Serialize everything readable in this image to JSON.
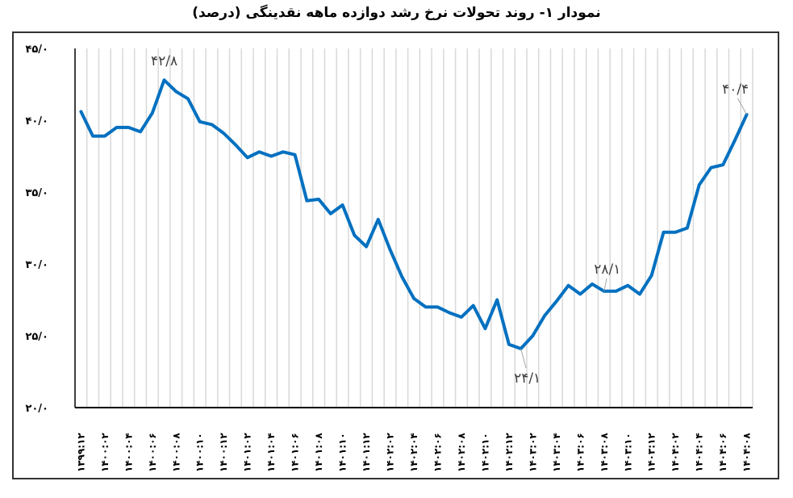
{
  "title": "نمودار ۱- روند تحولات نرخ رشد دوازده ماهه نقدینگی (درصد)",
  "colors": {
    "line": "#0070c0",
    "grid": "#d9d9d9",
    "axis": "#000000",
    "label": "#404040",
    "frame": "#333333"
  },
  "chart_data": {
    "type": "line",
    "title": "نمودار ۱- روند تحولات نرخ رشد دوازده ماهه نقدینگی (درصد)",
    "xlabel": "",
    "ylabel": "",
    "ylim": [
      20,
      45
    ],
    "yticks": [
      20,
      25,
      30,
      35,
      40,
      45
    ],
    "ytick_labels": [
      "۲۰/۰",
      "۲۵/۰",
      "۳۰/۰",
      "۳۵/۰",
      "۴۰/۰",
      "۴۵/۰"
    ],
    "grid": "vertical category gridlines",
    "legend": "none",
    "x": [
      "1399:12",
      "1400:01",
      "1400:02",
      "1400:03",
      "1400:04",
      "1400:05",
      "1400:06",
      "1400:07",
      "1400:08",
      "1400:09",
      "1400:10",
      "1400:11",
      "1400:12",
      "1401:01",
      "1401:02",
      "1401:03",
      "1401:04",
      "1401:05",
      "1401:06",
      "1401:07",
      "1401:08",
      "1401:09",
      "1401:10",
      "1401:11",
      "1401:12",
      "1402:01",
      "1402:02",
      "1402:03",
      "1402:04",
      "1402:05",
      "1402:06",
      "1402:07",
      "1402:08",
      "1402:09",
      "1402:10",
      "1402:11",
      "1402:12",
      "1403:01",
      "1403:02",
      "1403:03",
      "1403:04",
      "1403:05",
      "1403:06",
      "1403:07",
      "1403:08",
      "1403:09",
      "1403:10",
      "1403:11",
      "1403:12",
      "1404:01",
      "1404:02",
      "1404:03",
      "1404:04",
      "1404:05",
      "1404:06",
      "1404:07",
      "1404:08"
    ],
    "x_tick_labels": [
      "۱۳۹۹:۱۲",
      "۱۴۰۰:۰۲",
      "۱۴۰۰:۰۴",
      "۱۴۰۰:۰۶",
      "۱۴۰۰:۰۸",
      "۱۴۰۰:۱۰",
      "۱۴۰۰:۱۲",
      "۱۴۰۱:۰۲",
      "۱۴۰۱:۰۴",
      "۱۴۰۱:۰۶",
      "۱۴۰۱:۰۸",
      "۱۴۰۱:۱۰",
      "۱۴۰۱:۱۲",
      "۱۴۰۲:۰۲",
      "۱۴۰۲:۰۴",
      "۱۴۰۲:۰۶",
      "۱۴۰۲:۰۸",
      "۱۴۰۲:۱۰",
      "۱۴۰۲:۱۲",
      "۱۴۰۳:۰۲",
      "۱۴۰۳:۰۴",
      "۱۴۰۳:۰۶",
      "۱۴۰۳:۰۸",
      "۱۴۰۳:۱۰",
      "۱۴۰۳:۱۲",
      "۱۴۰۴:۰۲",
      "۱۴۰۴:۰۴",
      "۱۴۰۴:۰۶",
      "۱۴۰۴:۰۸"
    ],
    "series": [
      {
        "name": "نرخ رشد دوازده ماهه نقدینگی",
        "values": [
          40.6,
          38.9,
          38.9,
          39.5,
          39.5,
          39.2,
          40.5,
          42.8,
          42.0,
          41.5,
          39.9,
          39.7,
          39.1,
          38.3,
          37.4,
          37.8,
          37.5,
          37.8,
          37.6,
          34.4,
          34.5,
          33.5,
          34.1,
          32.0,
          31.2,
          33.1,
          31.0,
          29.1,
          27.6,
          27.0,
          27.0,
          26.6,
          26.3,
          27.1,
          25.5,
          27.5,
          24.4,
          24.1,
          25.0,
          26.4,
          27.4,
          28.5,
          27.9,
          28.6,
          28.1,
          28.1,
          28.5,
          27.9,
          29.2,
          32.2,
          32.2,
          32.5,
          35.5,
          36.7,
          36.9,
          38.6,
          40.4
        ]
      }
    ],
    "annotations": [
      {
        "index": 7,
        "text": "۴۲/۸",
        "value": 42.8
      },
      {
        "index": 37,
        "text": "۲۴/۱",
        "value": 24.1
      },
      {
        "index": 44,
        "text": "۲۸/۱",
        "value": 28.1
      },
      {
        "index": 56,
        "text": "۴۰/۴",
        "value": 40.4
      }
    ]
  }
}
